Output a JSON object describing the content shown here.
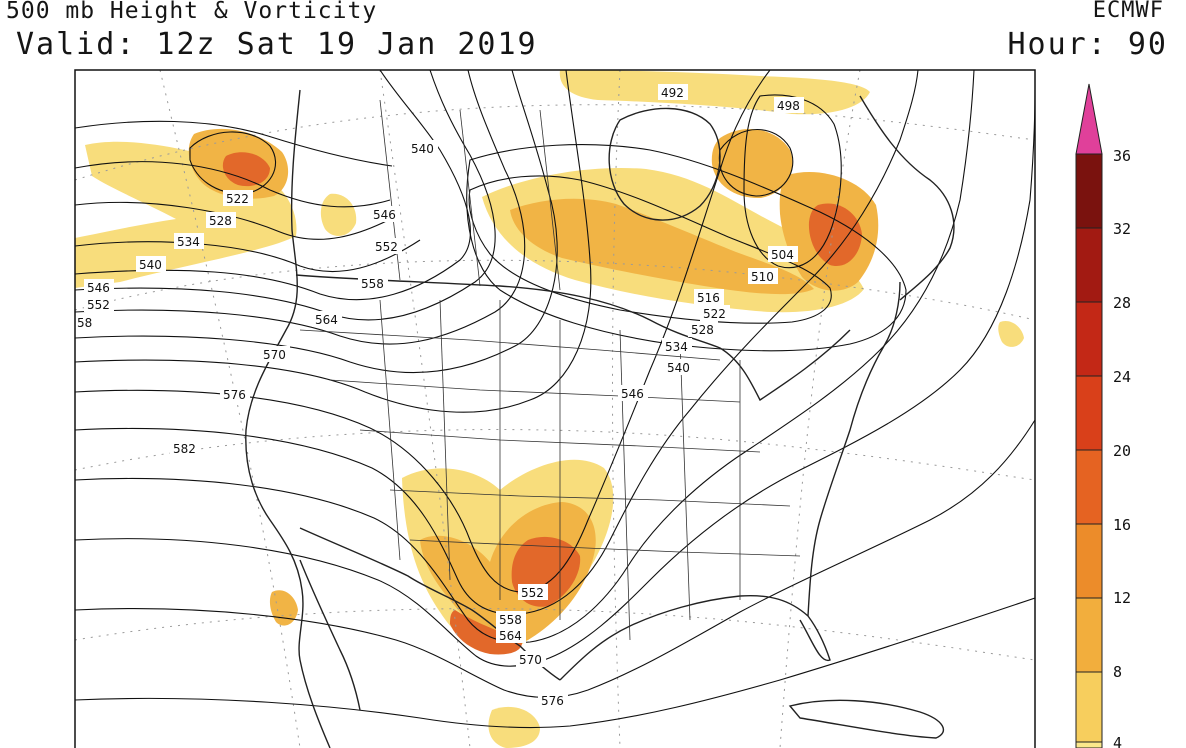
{
  "header": {
    "title": "500 mb Height & Vorticity",
    "valid": "Valid: 12z Sat 19 Jan 2019",
    "model": "ECMWF",
    "hour": "Hour: 90"
  },
  "contour_labels": [
    "522",
    "528",
    "534",
    "540",
    "546",
    "552",
    "58",
    "540",
    "546",
    "552",
    "558",
    "564",
    "570",
    "576",
    "582",
    "492",
    "498",
    "504",
    "510",
    "516",
    "522",
    "528",
    "534",
    "540",
    "546",
    "552",
    "558",
    "564",
    "570",
    "576"
  ],
  "colorbar": {
    "ticks": [
      "36",
      "32",
      "28",
      "24",
      "20",
      "16",
      "12",
      "8",
      "4"
    ],
    "colors": [
      "#fbe88c",
      "#f7ce5d",
      "#f2ae3d",
      "#ec8c2a",
      "#e56322",
      "#d9401a",
      "#c32816",
      "#a21a12",
      "#7a120e"
    ],
    "max_color": "#e0409a"
  },
  "colors": {
    "background": "#ffffff",
    "contour": "#111111",
    "border": "#222222",
    "vort_light": "#f8dd7c",
    "vort_mid": "#f1b445",
    "vort_high": "#e2682a"
  }
}
